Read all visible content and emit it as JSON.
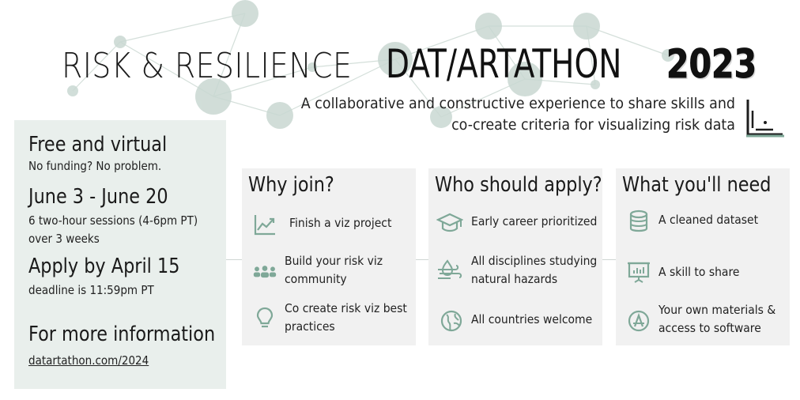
{
  "header": {
    "title_part1": "RISK & RESILIENCE",
    "title_part2": "DAT/ARTATHON",
    "title_year": "2023",
    "subtitle_line1": "A collaborative and constructive experience to share skills and",
    "subtitle_line2": "co-create criteria for visualizing risk data"
  },
  "info": {
    "cost_heading": "Free and virtual",
    "cost_note": "No funding? No problem.",
    "dates_heading": "June 3 - June 20",
    "dates_note_line1": "6 two-hour sessions (4-6pm PT)",
    "dates_note_line2": "over 3 weeks",
    "apply_heading": "Apply by April 15",
    "apply_note": "deadline is 11:59pm PT",
    "more_heading": "For more information",
    "more_link": "datartathon.com/2024"
  },
  "cards": [
    {
      "title": "Why join?",
      "items": [
        {
          "icon": "chart-line-icon",
          "line1": "Finish a viz project",
          "line2": ""
        },
        {
          "icon": "people-group-icon",
          "line1": "Build your risk viz",
          "line2": "community"
        },
        {
          "icon": "lightbulb-icon",
          "line1": "Co create risk viz best",
          "line2": "practices"
        }
      ]
    },
    {
      "title": "Who should apply?",
      "items": [
        {
          "icon": "graduation-cap-icon",
          "line1": "Early career prioritized",
          "line2": ""
        },
        {
          "icon": "hazard-wind-icon",
          "line1": "All disciplines studying",
          "line2": "natural hazards"
        },
        {
          "icon": "globe-icon",
          "line1": "All countries welcome",
          "line2": ""
        }
      ]
    },
    {
      "title": "What you'll need",
      "items": [
        {
          "icon": "database-icon",
          "line1": "A cleaned dataset",
          "line2": ""
        },
        {
          "icon": "presentation-board-icon",
          "line1": "A skill to share",
          "line2": ""
        },
        {
          "icon": "software-app-icon",
          "line1": "Your own materials &",
          "line2": "access to software"
        }
      ]
    }
  ],
  "colors": {
    "accent": "#7fa898",
    "panel": "#e9efec",
    "card": "#f1f1f1",
    "node": "#c9d8d2"
  }
}
